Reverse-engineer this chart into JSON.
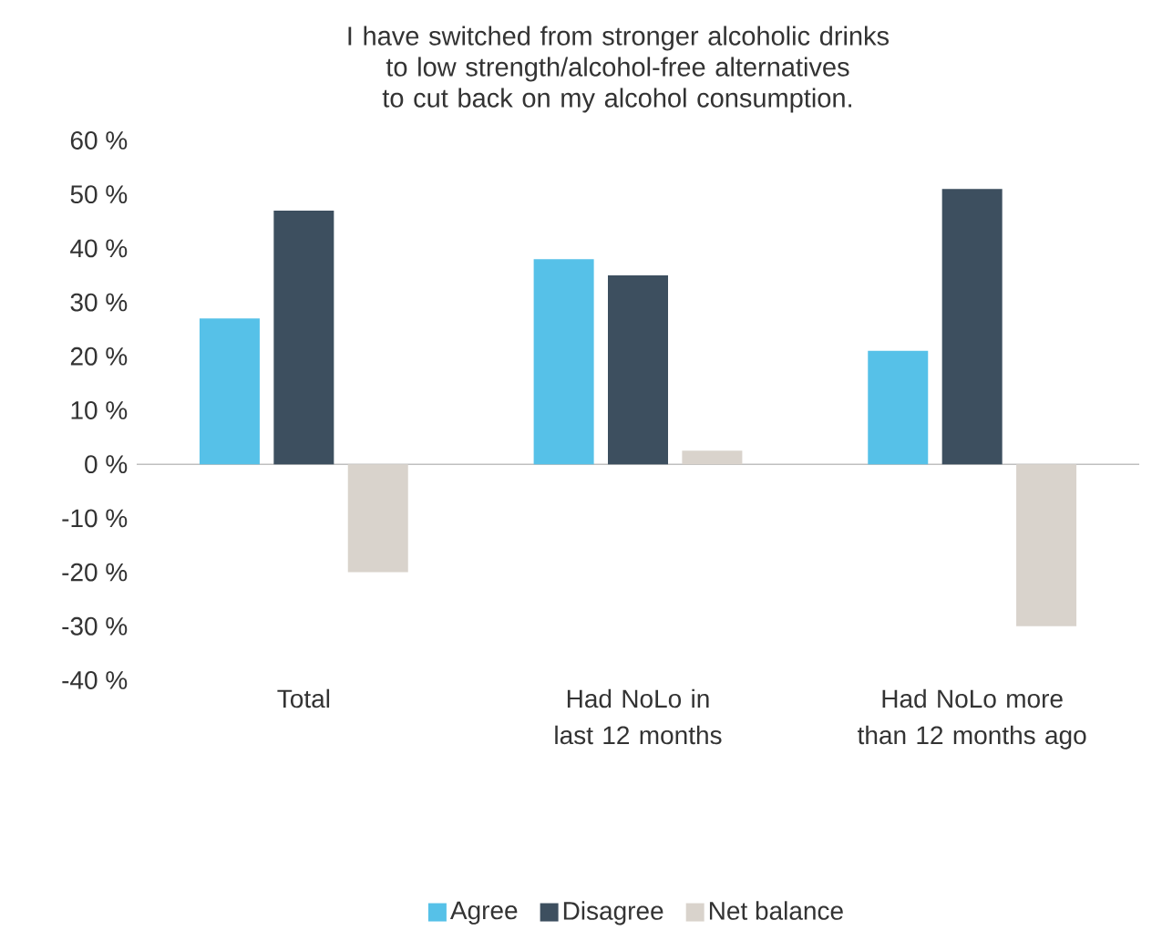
{
  "chart_data": {
    "type": "bar",
    "title": "I have switched from stronger alcoholic drinks to low strength/alcohol-free alternatives to cut back on my alcohol consumption.",
    "categories": [
      "Total",
      "Had NoLo in last 12 months",
      "Had NoLo more than 12 months ago"
    ],
    "series": [
      {
        "name": "Agree",
        "color": "#56c1e8",
        "values": [
          27,
          38,
          21
        ]
      },
      {
        "name": "Disagree",
        "color": "#3d4f5f",
        "values": [
          47,
          35,
          51
        ]
      },
      {
        "name": "Net balance",
        "color": "#d9d3cc",
        "values": [
          -20,
          2.5,
          -30
        ]
      }
    ],
    "ylim": [
      -40,
      60
    ],
    "yticks": [
      {
        "value": 60,
        "label": "60 %"
      },
      {
        "value": 50,
        "label": "50 %"
      },
      {
        "value": 40,
        "label": "40 %"
      },
      {
        "value": 30,
        "label": "30 %"
      },
      {
        "value": 20,
        "label": "20 %"
      },
      {
        "value": 10,
        "label": "10 %"
      },
      {
        "value": 0,
        "label": "0 %"
      },
      {
        "value": -10,
        "label": "-10 %"
      },
      {
        "value": -20,
        "label": "-20 %"
      },
      {
        "value": -30,
        "label": "-30 %"
      },
      {
        "value": -40,
        "label": "-40 %"
      }
    ],
    "legend": "bottom"
  }
}
